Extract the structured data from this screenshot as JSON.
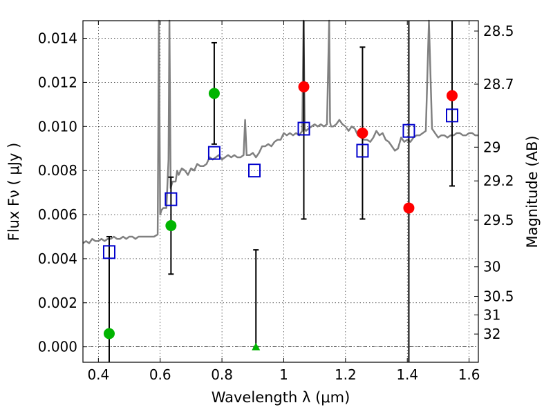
{
  "chart_data": {
    "type": "scatter",
    "xlabel": "Wavelength  λ (μm)",
    "ylabel": "Flux  Fν  ( μJy )",
    "y2label": "Magnitude (AB)",
    "xlim": [
      0.35,
      1.63
    ],
    "ylim": [
      -0.0007,
      0.0148
    ],
    "grid": true,
    "legend": "none",
    "x_ticks": [
      {
        "value": 0.4,
        "label": "0.4"
      },
      {
        "value": 0.6,
        "label": "0.6"
      },
      {
        "value": 0.8,
        "label": "0.8"
      },
      {
        "value": 1.0,
        "label": "1"
      },
      {
        "value": 1.2,
        "label": "1.2"
      },
      {
        "value": 1.4,
        "label": "1.4"
      },
      {
        "value": 1.6,
        "label": "1.6"
      }
    ],
    "y_ticks": [
      {
        "value": 0.0,
        "label": "0.000"
      },
      {
        "value": 0.002,
        "label": "0.002"
      },
      {
        "value": 0.004,
        "label": "0.004"
      },
      {
        "value": 0.006,
        "label": "0.006"
      },
      {
        "value": 0.008,
        "label": "0.008"
      },
      {
        "value": 0.01,
        "label": "0.010"
      },
      {
        "value": 0.012,
        "label": "0.012"
      },
      {
        "value": 0.014,
        "label": "0.014"
      }
    ],
    "y2_ticks": [
      {
        "flux": 0.01433,
        "label": "28.5"
      },
      {
        "flux": 0.01192,
        "label": "28.7"
      },
      {
        "flux": 0.00906,
        "label": "29"
      },
      {
        "flux": 0.00753,
        "label": "29.2"
      },
      {
        "flux": 0.00575,
        "label": "29.5"
      },
      {
        "flux": 0.00363,
        "label": "30"
      },
      {
        "flux": 0.00229,
        "label": "30.5"
      },
      {
        "flux": 0.00145,
        "label": "31"
      },
      {
        "flux": 0.00058,
        "label": "32"
      }
    ],
    "spectrum": {
      "color": "#808080",
      "x": [
        0.35,
        0.36,
        0.37,
        0.38,
        0.39,
        0.4,
        0.41,
        0.42,
        0.43,
        0.44,
        0.45,
        0.46,
        0.47,
        0.48,
        0.49,
        0.5,
        0.51,
        0.52,
        0.53,
        0.54,
        0.55,
        0.56,
        0.57,
        0.58,
        0.592,
        0.596,
        0.6,
        0.604,
        0.61,
        0.62,
        0.627,
        0.63,
        0.634,
        0.64,
        0.65,
        0.655,
        0.66,
        0.67,
        0.68,
        0.69,
        0.7,
        0.71,
        0.72,
        0.73,
        0.74,
        0.75,
        0.76,
        0.77,
        0.78,
        0.79,
        0.8,
        0.81,
        0.82,
        0.83,
        0.84,
        0.85,
        0.86,
        0.87,
        0.875,
        0.88,
        0.89,
        0.9,
        0.91,
        0.92,
        0.93,
        0.94,
        0.95,
        0.96,
        0.97,
        0.98,
        0.99,
        1.0,
        1.01,
        1.02,
        1.03,
        1.04,
        1.05,
        1.06,
        1.064,
        1.068,
        1.072,
        1.08,
        1.09,
        1.1,
        1.11,
        1.12,
        1.13,
        1.14,
        1.147,
        1.15,
        1.153,
        1.16,
        1.17,
        1.18,
        1.19,
        1.2,
        1.21,
        1.22,
        1.23,
        1.24,
        1.25,
        1.26,
        1.27,
        1.28,
        1.29,
        1.3,
        1.31,
        1.32,
        1.33,
        1.34,
        1.35,
        1.36,
        1.37,
        1.38,
        1.39,
        1.4,
        1.41,
        1.42,
        1.43,
        1.44,
        1.45,
        1.46,
        1.47,
        1.48,
        1.49,
        1.5,
        1.51,
        1.52,
        1.53,
        1.54,
        1.55,
        1.56,
        1.57,
        1.58,
        1.59,
        1.6,
        1.61,
        1.62,
        1.63
      ],
      "y": [
        0.0047,
        0.0048,
        0.0047,
        0.0049,
        0.0048,
        0.0048,
        0.0049,
        0.0048,
        0.0049,
        0.0049,
        0.005,
        0.0049,
        0.0049,
        0.005,
        0.0049,
        0.005,
        0.005,
        0.0049,
        0.005,
        0.005,
        0.005,
        0.005,
        0.005,
        0.005,
        0.0051,
        0.0148,
        0.006,
        0.0062,
        0.0063,
        0.0063,
        0.0085,
        0.0148,
        0.0072,
        0.0075,
        0.0075,
        0.008,
        0.0078,
        0.0081,
        0.008,
        0.0078,
        0.0081,
        0.008,
        0.0083,
        0.0082,
        0.0082,
        0.0083,
        0.0086,
        0.0085,
        0.0086,
        0.0087,
        0.0085,
        0.0086,
        0.0087,
        0.0086,
        0.0087,
        0.0086,
        0.0086,
        0.0087,
        0.0103,
        0.0087,
        0.0087,
        0.0088,
        0.0086,
        0.0088,
        0.0091,
        0.0091,
        0.0092,
        0.0091,
        0.0093,
        0.0094,
        0.0094,
        0.0097,
        0.0096,
        0.0097,
        0.0096,
        0.0097,
        0.0096,
        0.0098,
        0.0148,
        0.0099,
        0.0098,
        0.0099,
        0.01,
        0.0101,
        0.01,
        0.0101,
        0.01,
        0.0101,
        0.0148,
        0.0102,
        0.01,
        0.01,
        0.0101,
        0.0103,
        0.0101,
        0.01,
        0.0098,
        0.01,
        0.0099,
        0.0096,
        0.0095,
        0.0094,
        0.0094,
        0.0093,
        0.0095,
        0.0098,
        0.0096,
        0.0097,
        0.0094,
        0.0093,
        0.0091,
        0.0089,
        0.009,
        0.0095,
        0.0093,
        0.0094,
        0.0093,
        0.0095,
        0.0096,
        0.0096,
        0.0097,
        0.0098,
        0.0148,
        0.0099,
        0.0097,
        0.0095,
        0.0096,
        0.0096,
        0.0095,
        0.0096,
        0.0096,
        0.0097,
        0.0097,
        0.0096,
        0.0096,
        0.0097,
        0.0097,
        0.0096,
        0.0096
      ]
    },
    "model_points": {
      "name": "model photometry",
      "marker": "open-square",
      "color": "#0000cc",
      "x": [
        0.435,
        0.635,
        0.775,
        0.905,
        1.065,
        1.255,
        1.405,
        1.545
      ],
      "y": [
        0.0043,
        0.0067,
        0.0088,
        0.008,
        0.0099,
        0.0089,
        0.0098,
        0.0105
      ]
    },
    "green_points": {
      "color": "#00b400",
      "x": [
        0.435,
        0.635,
        0.775
      ],
      "y": [
        0.0006,
        0.0055,
        0.0115
      ],
      "yerr_low": [
        null,
        0.0033,
        0.0092
      ],
      "yerr_high": [
        0.005,
        0.0077,
        0.0138
      ]
    },
    "green_triangle": {
      "color": "#00b400",
      "x": [
        0.91
      ],
      "y": [
        0.0
      ],
      "yerr_low": [
        0.0
      ],
      "yerr_high": [
        0.0044
      ]
    },
    "red_points": {
      "color": "#ff0000",
      "x": [
        1.065,
        1.255,
        1.405,
        1.545
      ],
      "y": [
        0.0118,
        0.0097,
        0.0063,
        0.0114
      ],
      "yerr_low": [
        0.0058,
        0.0058,
        null,
        0.0073
      ],
      "yerr_high": [
        null,
        0.0136,
        null,
        null
      ]
    },
    "full_range_bars": [
      1.405
    ]
  }
}
